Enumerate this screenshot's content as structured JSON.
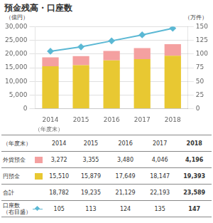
{
  "chart_data": {
    "type": "bar",
    "title": "預金残高・口座数",
    "stacked": true,
    "categories": [
      "2014",
      "2015",
      "2016",
      "2017",
      "2018"
    ],
    "series": [
      {
        "name": "円預金",
        "type": "bar",
        "color": "#E8C832",
        "values": [
          15510,
          15879,
          17649,
          18147,
          19393
        ]
      },
      {
        "name": "外貨預金",
        "type": "bar",
        "color": "#F4A0A0",
        "values": [
          3272,
          3355,
          3480,
          4046,
          4196
        ]
      },
      {
        "name": "口座数",
        "type": "line",
        "axis": "y2",
        "color": "#5BB8D4",
        "marker": "diamond",
        "values": [
          105,
          113,
          124,
          135,
          147
        ]
      }
    ],
    "ylabel": "（億円）",
    "y2label": "（万件）",
    "xlabel": "（年度末）",
    "ylim": [
      0,
      30000
    ],
    "yticks": [
      0,
      {
        "value": 5000,
        "label": "5,000"
      },
      {
        "value": 10000,
        "label": "10,000"
      },
      {
        "value": 15000,
        "label": "15,000"
      },
      {
        "value": 20000,
        "label": "20,000"
      },
      {
        "value": 25000,
        "label": "25,000"
      },
      {
        "value": 30000,
        "label": "30,000"
      }
    ],
    "y2lim": [
      0,
      150
    ],
    "y2ticks": [
      0,
      25,
      50,
      75,
      100,
      125,
      150
    ],
    "grid": true,
    "table": {
      "headers": [
        "（年度末）",
        "2014",
        "2015",
        "2016",
        "2017",
        "2018"
      ],
      "rows": [
        {
          "label": "外貨預金",
          "values": [
            "3,272",
            "3,355",
            "3,480",
            "4,046",
            "4,196"
          ]
        },
        {
          "label": "円預金",
          "values": [
            "15,510",
            "15,879",
            "17,649",
            "18,147",
            "19,393"
          ]
        },
        {
          "label": "合計",
          "values": [
            "18,782",
            "19,235",
            "21,129",
            "22,193",
            "23,589"
          ]
        },
        {
          "label": "口座数\n（右目盛）",
          "values": [
            "105",
            "113",
            "124",
            "135",
            "147"
          ]
        }
      ]
    }
  }
}
